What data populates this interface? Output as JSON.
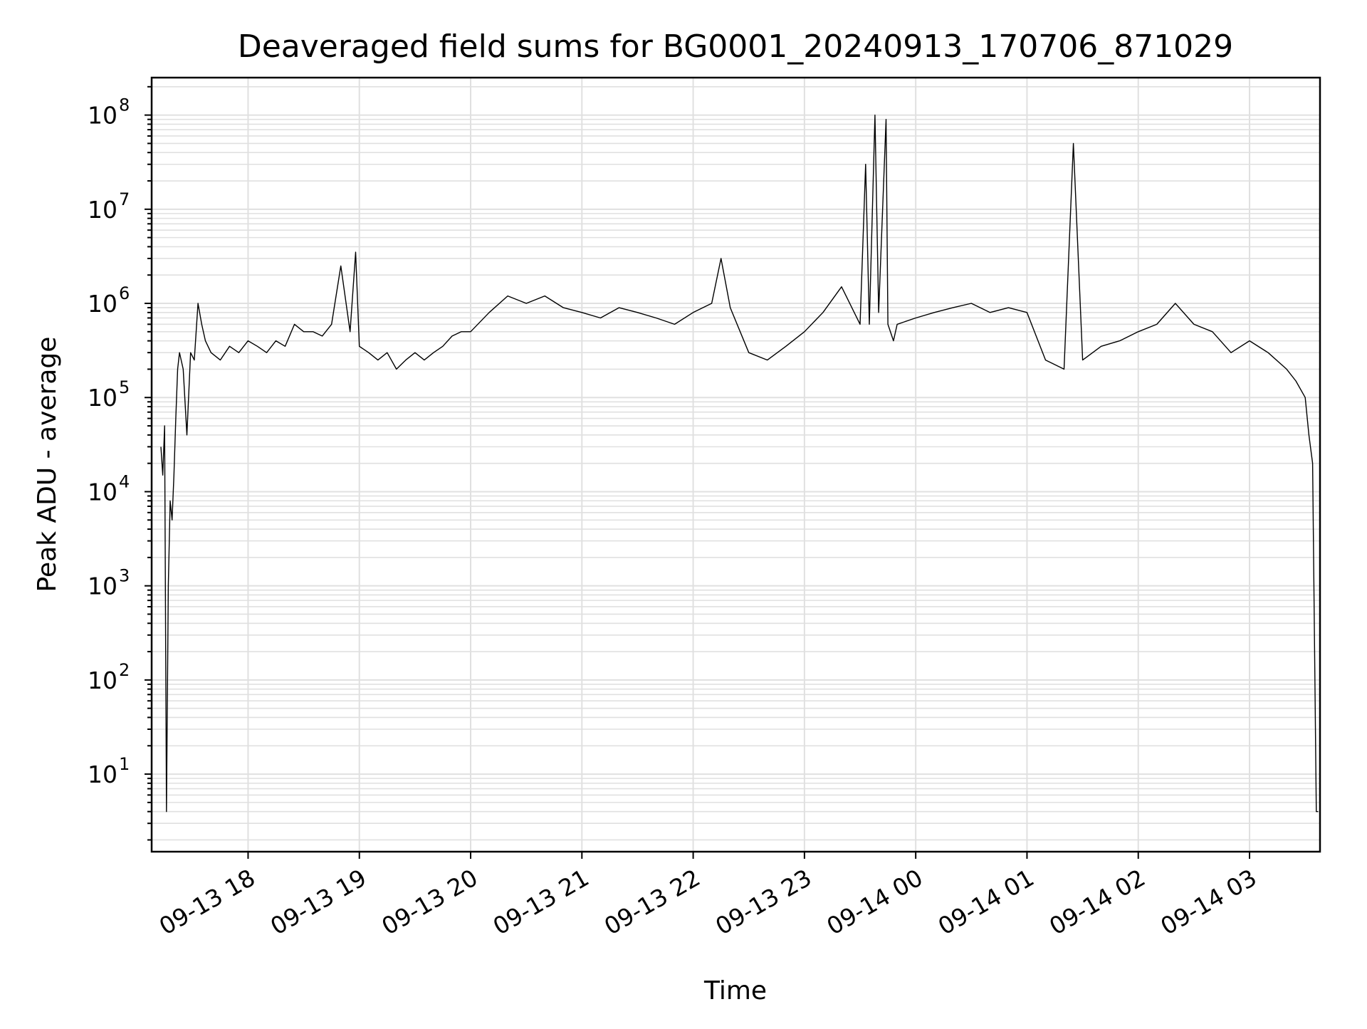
{
  "chart_data": {
    "type": "line",
    "title": "Deaveraged field sums for BG0001_20240913_170706_871029",
    "xlabel": "Time",
    "ylabel": "Peak ADU - average",
    "yscale": "log",
    "ylim": [
      1.5,
      250000000
    ],
    "xlim": [
      "09-13 17:08",
      "09-14 03:38"
    ],
    "grid": true,
    "grid_color": "#e0e0e0",
    "line_color": "#000000",
    "x_ticks": [
      {
        "label": "09-13 18",
        "time": "09-13 18:00"
      },
      {
        "label": "09-13 19",
        "time": "09-13 19:00"
      },
      {
        "label": "09-13 20",
        "time": "09-13 20:00"
      },
      {
        "label": "09-13 21",
        "time": "09-13 21:00"
      },
      {
        "label": "09-13 22",
        "time": "09-13 22:00"
      },
      {
        "label": "09-13 23",
        "time": "09-13 23:00"
      },
      {
        "label": "09-14 00",
        "time": "09-14 00:00"
      },
      {
        "label": "09-14 01",
        "time": "09-14 01:00"
      },
      {
        "label": "09-14 02",
        "time": "09-14 02:00"
      },
      {
        "label": "09-14 03",
        "time": "09-14 03:00"
      }
    ],
    "y_ticks": [
      {
        "base": "10",
        "exp": "1",
        "value": 10
      },
      {
        "base": "10",
        "exp": "2",
        "value": 100
      },
      {
        "base": "10",
        "exp": "3",
        "value": 1000
      },
      {
        "base": "10",
        "exp": "4",
        "value": 10000
      },
      {
        "base": "10",
        "exp": "5",
        "value": 100000
      },
      {
        "base": "10",
        "exp": "6",
        "value": 1000000
      },
      {
        "base": "10",
        "exp": "7",
        "value": 10000000
      },
      {
        "base": "10",
        "exp": "8",
        "value": 100000000
      }
    ],
    "series": [
      {
        "x": [
          "09-13 17:13",
          "09-13 17:14",
          "09-13 17:15",
          "09-13 17:16",
          "09-13 17:17",
          "09-13 17:18",
          "09-13 17:19",
          "09-13 17:20",
          "09-13 17:21",
          "09-13 17:22",
          "09-13 17:23",
          "09-13 17:25",
          "09-13 17:27",
          "09-13 17:29",
          "09-13 17:31",
          "09-13 17:33",
          "09-13 17:35",
          "09-13 17:37",
          "09-13 17:40",
          "09-13 17:45",
          "09-13 17:50",
          "09-13 17:55",
          "09-13 18:00",
          "09-13 18:05",
          "09-13 18:10",
          "09-13 18:15",
          "09-13 18:20",
          "09-13 18:25",
          "09-13 18:30",
          "09-13 18:35",
          "09-13 18:40",
          "09-13 18:45",
          "09-13 18:50",
          "09-13 18:55",
          "09-13 18:58",
          "09-13 19:00",
          "09-13 19:05",
          "09-13 19:10",
          "09-13 19:15",
          "09-13 19:20",
          "09-13 19:25",
          "09-13 19:30",
          "09-13 19:35",
          "09-13 19:40",
          "09-13 19:45",
          "09-13 19:50",
          "09-13 19:55",
          "09-13 20:00",
          "09-13 20:10",
          "09-13 20:20",
          "09-13 20:30",
          "09-13 20:40",
          "09-13 20:50",
          "09-13 21:00",
          "09-13 21:10",
          "09-13 21:20",
          "09-13 21:30",
          "09-13 21:40",
          "09-13 21:50",
          "09-13 22:00",
          "09-13 22:10",
          "09-13 22:15",
          "09-13 22:20",
          "09-13 22:30",
          "09-13 22:40",
          "09-13 22:50",
          "09-13 23:00",
          "09-13 23:10",
          "09-13 23:20",
          "09-13 23:30",
          "09-13 23:33",
          "09-13 23:35",
          "09-13 23:38",
          "09-13 23:40",
          "09-13 23:44",
          "09-13 23:45",
          "09-13 23:48",
          "09-13 23:50",
          "09-14 00:00",
          "09-14 00:10",
          "09-14 00:20",
          "09-14 00:30",
          "09-14 00:40",
          "09-14 00:50",
          "09-14 01:00",
          "09-14 01:10",
          "09-14 01:20",
          "09-14 01:25",
          "09-14 01:30",
          "09-14 01:40",
          "09-14 01:50",
          "09-14 02:00",
          "09-14 02:10",
          "09-14 02:20",
          "09-14 02:30",
          "09-14 02:40",
          "09-14 02:50",
          "09-14 03:00",
          "09-14 03:10",
          "09-14 03:20",
          "09-14 03:25",
          "09-14 03:30",
          "09-14 03:32",
          "09-14 03:34",
          "09-14 03:36",
          "09-14 03:37"
        ],
        "y": [
          30000,
          15000,
          50000,
          4,
          1000,
          8000,
          5000,
          15000,
          60000,
          200000,
          300000,
          200000,
          40000,
          300000,
          250000,
          1000000,
          600000,
          400000,
          300000,
          250000,
          350000,
          300000,
          400000,
          350000,
          300000,
          400000,
          350000,
          600000,
          500000,
          500000,
          450000,
          600000,
          2500000,
          500000,
          3500000,
          350000,
          300000,
          250000,
          300000,
          200000,
          250000,
          300000,
          250000,
          300000,
          350000,
          450000,
          500000,
          500000,
          800000,
          1200000,
          1000000,
          1200000,
          900000,
          800000,
          700000,
          900000,
          800000,
          700000,
          600000,
          800000,
          1000000,
          3000000,
          900000,
          300000,
          250000,
          350000,
          500000,
          800000,
          1500000,
          600000,
          30000000,
          600000,
          100000000,
          800000,
          90000000,
          600000,
          400000,
          600000,
          700000,
          800000,
          900000,
          1000000,
          800000,
          900000,
          800000,
          250000,
          200000,
          50000000,
          250000,
          350000,
          400000,
          500000,
          600000,
          1000000,
          600000,
          500000,
          300000,
          400000,
          300000,
          200000,
          150000,
          100000,
          40000,
          20000,
          4,
          4
        ]
      }
    ]
  }
}
